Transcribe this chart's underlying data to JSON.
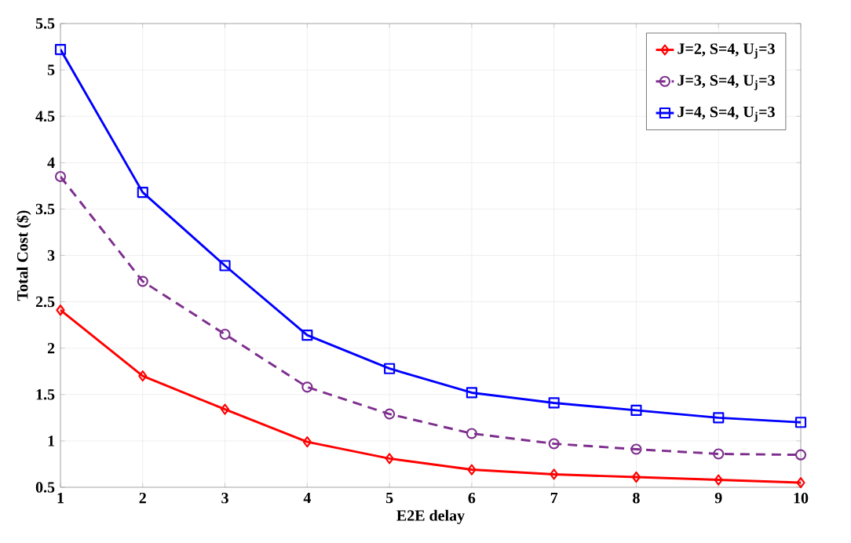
{
  "chart_data": {
    "type": "line",
    "xlabel": "E2E delay",
    "ylabel": "Total Cost ($)",
    "x": [
      1,
      2,
      3,
      4,
      5,
      6,
      7,
      8,
      9,
      10
    ],
    "xlim": [
      1,
      10
    ],
    "ylim": [
      0.5,
      5.5
    ],
    "xticks": [
      1,
      2,
      3,
      4,
      5,
      6,
      7,
      8,
      9,
      10
    ],
    "yticks": [
      0.5,
      1,
      1.5,
      2,
      2.5,
      3,
      3.5,
      4,
      4.5,
      5,
      5.5
    ],
    "grid": true,
    "legend": "top right",
    "series": [
      {
        "name": "J=2, S=4, U$_{j}$=3",
        "color": "#ff0000",
        "marker": "diamond",
        "line_style": "solid",
        "values": [
          2.41,
          1.7,
          1.34,
          0.99,
          0.81,
          0.69,
          0.64,
          0.61,
          0.58,
          0.55
        ]
      },
      {
        "name": "J=3, S=4, U$_{j}$=3",
        "color": "#7e2f8e",
        "marker": "circle",
        "line_style": "dashed",
        "values": [
          3.85,
          2.72,
          2.15,
          1.58,
          1.29,
          1.08,
          0.97,
          0.91,
          0.86,
          0.85
        ]
      },
      {
        "name": "J=4, S=4, U$_{j}$=3",
        "color": "#0000ff",
        "marker": "square",
        "line_style": "solid",
        "values": [
          5.22,
          3.68,
          2.89,
          2.14,
          1.78,
          1.52,
          1.41,
          1.33,
          1.25,
          1.2
        ]
      }
    ]
  }
}
